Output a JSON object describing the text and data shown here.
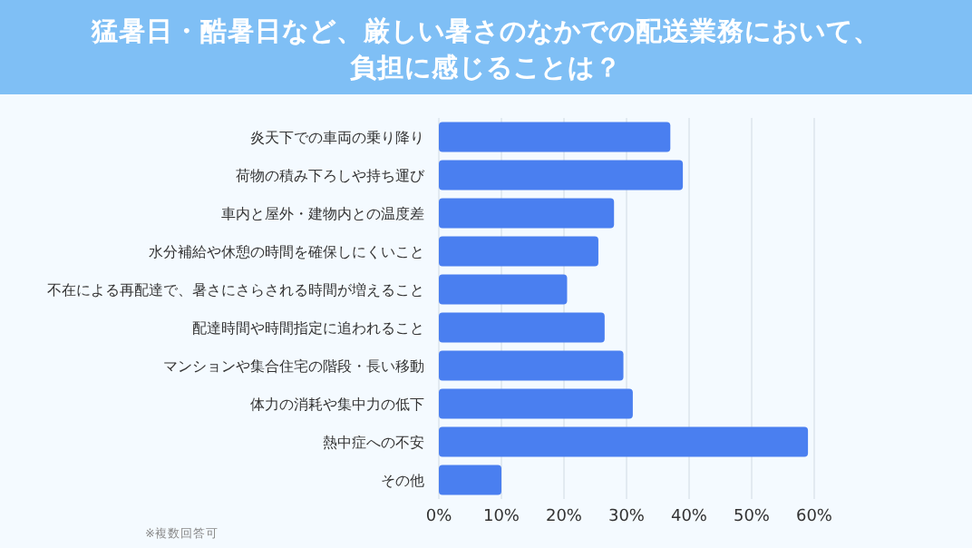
{
  "chart_data": {
    "type": "bar",
    "orientation": "horizontal",
    "title": "猛暑日・酷暑日など、厳しい暑さのなかでの配送業務において、負担に感じることは？",
    "categories": [
      "炎天下での車両の乗り降り",
      "荷物の積み下ろしや持ち運び",
      "車内と屋外・建物内との温度差",
      "水分補給や休憩の時間を確保しにくいこと",
      "不在による再配達で、暑さにさらされる時間が増えること",
      "配達時間や時間指定に追われること",
      "マンションや集合住宅の階段・長い移動",
      "体力の消耗や集中力の低下",
      "熱中症への不安",
      "その他"
    ],
    "values": [
      37,
      39,
      28,
      25.5,
      20.5,
      26.5,
      29.5,
      31,
      59,
      10
    ],
    "color": "#4a7ff0",
    "xlim": [
      0,
      60
    ],
    "xticks": [
      {
        "value": 0,
        "label": "0%"
      },
      {
        "value": 10,
        "label": "10%"
      },
      {
        "value": 20,
        "label": "20%"
      },
      {
        "value": 30,
        "label": "30%"
      },
      {
        "value": 40,
        "label": "40%"
      },
      {
        "value": 50,
        "label": "50%"
      },
      {
        "value": 60,
        "label": "60%"
      }
    ],
    "grid": "x",
    "annotations": [
      "※複数回答可"
    ]
  }
}
